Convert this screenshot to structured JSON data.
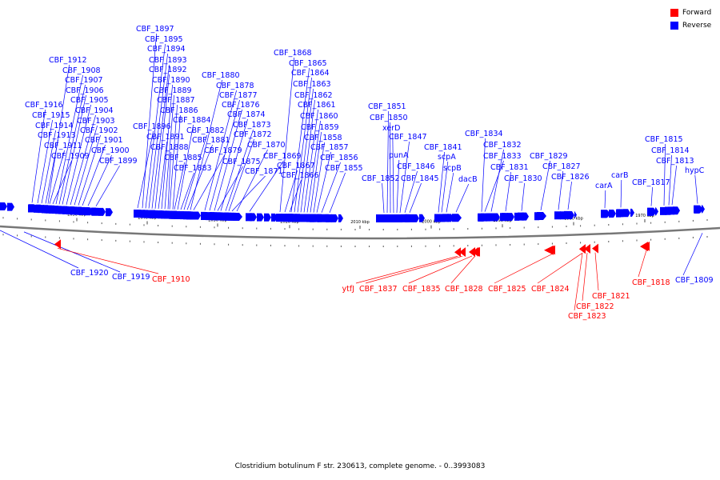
{
  "title": "Clostridium botulinum F str. 230613, complete genome. - 0..3993083",
  "legend": [
    {
      "label": "Forward",
      "color": "#ff0000"
    },
    {
      "label": "Reverse",
      "color": "#0000ff"
    }
  ],
  "colors": {
    "forward": "#ff0000",
    "reverse": "#0000ff",
    "axis": "#777777",
    "text": "#000000"
  },
  "ticks": [
    {
      "label": "2050 kbp"
    },
    {
      "label": "2040 kbp"
    },
    {
      "label": "2030 kbp"
    },
    {
      "label": "2020 kbp"
    },
    {
      "label": "2010 kbp"
    },
    {
      "label": "2000 kbp"
    },
    {
      "label": "1990 kbp"
    },
    {
      "label": "1980 kbp"
    },
    {
      "label": "1970 kbp"
    }
  ],
  "reverse_genes": [
    "CBF_1916",
    "CBF_1915",
    "CBF_1914",
    "CBF_1913",
    "CBF_1912",
    "CBF_1911",
    "CBF_1909",
    "CBF_1908",
    "CBF_1907",
    "CBF_1906",
    "CBF_1905",
    "CBF_1904",
    "CBF_1903",
    "CBF_1902",
    "CBF_1901",
    "CBF_1900",
    "CBF_1899",
    "CBF_1897",
    "CBF_1896",
    "CBF_1895",
    "CBF_1894",
    "CBF_1893",
    "CBF_1892",
    "CBF_1891",
    "CBF_1890",
    "CBF_1889",
    "CBF_1888",
    "CBF_1887",
    "CBF_1886",
    "CBF_1885",
    "CBF_1884",
    "CBF_1883",
    "CBF_1882",
    "CBF_1881",
    "CBF_1880",
    "CBF_1879",
    "CBF_1878",
    "CBF_1877",
    "CBF_1876",
    "CBF_1875",
    "CBF_1874",
    "CBF_1873",
    "CBF_1872",
    "CBF_1871",
    "CBF_1870",
    "CBF_1869",
    "CBF_1868",
    "CBF_1867",
    "CBF_1866",
    "CBF_1865",
    "CBF_1864",
    "CBF_1863",
    "CBF_1862",
    "CBF_1861",
    "CBF_1860",
    "CBF_1859",
    "CBF_1858",
    "CBF_1857",
    "CBF_1856",
    "CBF_1855",
    "CBF_1852",
    "CBF_1851",
    "CBF_1850",
    "xerD",
    "punA",
    "CBF_1847",
    "CBF_1846",
    "CBF_1845",
    "CBF_1841",
    "scpA",
    "scpB",
    "dacB",
    "CBF_1834",
    "CBF_1833",
    "CBF_1832",
    "CBF_1831",
    "CBF_1830",
    "CBF_1829",
    "CBF_1827",
    "CBF_1826",
    "carA",
    "carB",
    "CBF_1817",
    "CBF_1815",
    "CBF_1814",
    "CBF_1813",
    "hypC",
    "CBF_1920",
    "CBF_1919",
    "CBF_1809"
  ],
  "forward_genes": [
    "CBF_1910",
    "ytfJ",
    "CBF_1837",
    "CBF_1835",
    "CBF_1828",
    "CBF_1825",
    "CBF_1824",
    "CBF_1821",
    "CBF_1822",
    "CBF_1823",
    "CBF_1818"
  ]
}
